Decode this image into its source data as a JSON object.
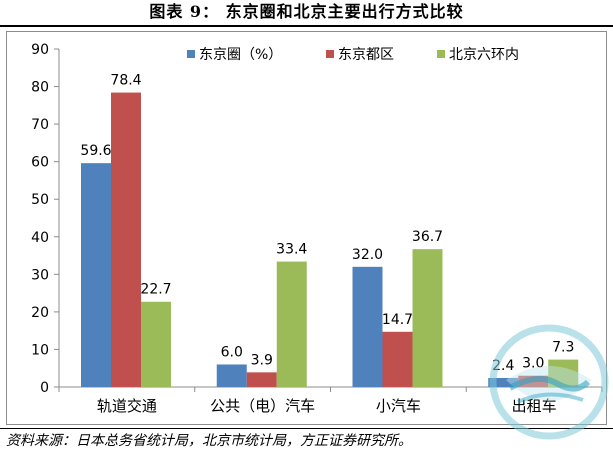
{
  "title": "图表 9：  东京圈和北京主要出行方式比较",
  "source": "资料来源：日本总务省统计局，北京市统计局，方正证券研究所。",
  "watermark_text": "方正证券研究所",
  "chart_data": {
    "type": "bar",
    "title": "",
    "xlabel": "",
    "ylabel": "",
    "ylim": [
      0,
      90
    ],
    "yticks": [
      0,
      10,
      20,
      30,
      40,
      50,
      60,
      70,
      80,
      90
    ],
    "grid": false,
    "legend": "top",
    "categories": [
      "轨道交通",
      "公共（电）汽车",
      "小汽车",
      "出租车"
    ],
    "series": [
      {
        "name": "东京圈（%）",
        "color": "#4f81bd",
        "values": [
          59.6,
          6.0,
          32.0,
          2.4
        ]
      },
      {
        "name": "东京都区",
        "color": "#c0504d",
        "values": [
          78.4,
          3.9,
          14.7,
          3.0
        ]
      },
      {
        "name": "北京六环内",
        "color": "#9bbb59",
        "values": [
          22.7,
          33.4,
          36.7,
          7.3
        ]
      }
    ]
  }
}
